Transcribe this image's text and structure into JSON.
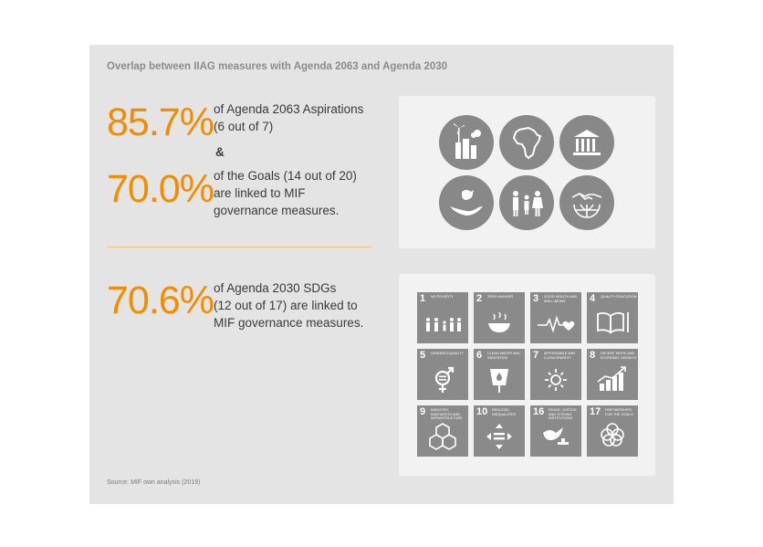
{
  "title": "Overlap between IIAG measures with Agenda 2063 and Agenda 2030",
  "stats": {
    "aspirations_pct": "85.7%",
    "aspirations_line1": "of Agenda 2063 Aspirations",
    "aspirations_line2": "(6 out of 7)",
    "ampersand": "&",
    "goals_pct": "70.0%",
    "goals_line1": "of the Goals (14 out of 20)",
    "goals_line2": "are linked to MIF",
    "goals_line3": "governance measures.",
    "sdgs_pct": "70.6%",
    "sdgs_line1": "of Agenda 2030 SDGs",
    "sdgs_line2": "(12 out of 17) are linked to",
    "sdgs_line3": "MIF governance measures."
  },
  "aspiration_icons": [
    "wind-city-icon",
    "africa-map-icon",
    "institution-icon",
    "hand-dove-icon",
    "people-family-icon",
    "handshake-globe-icon"
  ],
  "sdgs": [
    {
      "num": "1",
      "label": "NO POVERTY",
      "icon": "family-icon"
    },
    {
      "num": "2",
      "label": "ZERO HUNGER",
      "icon": "bowl-icon"
    },
    {
      "num": "3",
      "label": "GOOD HEALTH AND WELL-BEING",
      "icon": "heartbeat-icon"
    },
    {
      "num": "4",
      "label": "QUALITY EDUCATION",
      "icon": "book-icon"
    },
    {
      "num": "5",
      "label": "GENDER EQUALITY",
      "icon": "gender-icon"
    },
    {
      "num": "6",
      "label": "CLEAN WATER AND SANITATION",
      "icon": "water-glass-icon"
    },
    {
      "num": "7",
      "label": "AFFORDABLE AND CLEAN ENERGY",
      "icon": "sun-power-icon"
    },
    {
      "num": "8",
      "label": "DECENT WORK AND ECONOMIC GROWTH",
      "icon": "growth-chart-icon"
    },
    {
      "num": "9",
      "label": "INDUSTRY, INNOVATION AND INFRASTRUCTURE",
      "icon": "cubes-icon"
    },
    {
      "num": "10",
      "label": "REDUCED INEQUALITIES",
      "icon": "equality-arrows-icon"
    },
    {
      "num": "16",
      "label": "PEACE, JUSTICE AND STRONG INSTITUTIONS",
      "icon": "dove-gavel-icon"
    },
    {
      "num": "17",
      "label": "PARTNERSHIPS FOR THE GOALS",
      "icon": "rings-flower-icon"
    }
  ],
  "colors": {
    "accent": "#f28c00",
    "panel": "#e4e4e4",
    "box": "#f2f2f2",
    "icon": "#8a8a8a"
  },
  "source": "Source: MIF own analysis (2019)"
}
